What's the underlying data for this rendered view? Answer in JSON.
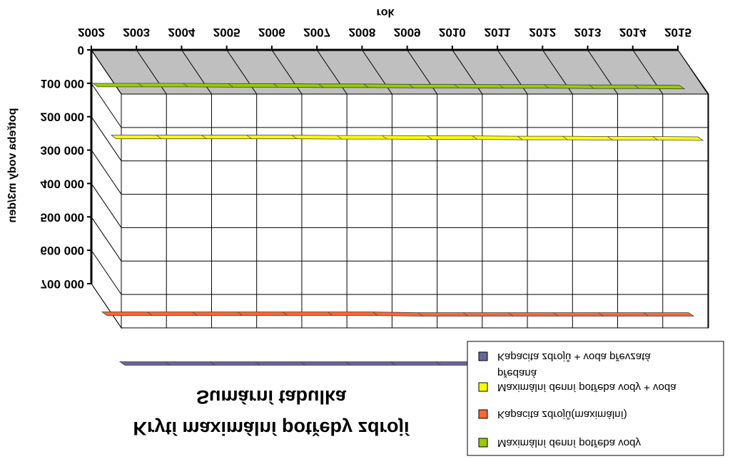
{
  "chart_data": {
    "type": "area",
    "orientation": "upside-down (mirrored vertically)",
    "title": "Krytí maximální potřeby zdrojí",
    "subtitle": "Sumární tabulka",
    "xlabel": "rok",
    "ylabel": "potřeba vody m3/den",
    "categories": [
      "2002",
      "2003",
      "2004",
      "2005",
      "2006",
      "2007",
      "2008",
      "2009",
      "2010",
      "2011",
      "2012",
      "2013",
      "2014",
      "2015"
    ],
    "y_ticks": [
      0,
      100000,
      200000,
      300000,
      400000,
      500000,
      600000,
      700000
    ],
    "y_tick_labels": [
      "0",
      "100 000",
      "200 000",
      "300 000",
      "400 000",
      "500 000",
      "600 000",
      "700 000"
    ],
    "ylim": [
      0,
      800000
    ],
    "grid": true,
    "legend_position": "bottom-right",
    "series": [
      {
        "name": "Maximální denní potřeba vody",
        "color": "#99cc00",
        "values": [
          100000,
          100000,
          100000,
          101000,
          101000,
          102000,
          102000,
          103000,
          103000,
          104000,
          104000,
          105000,
          105000,
          106000
        ]
      },
      {
        "name": "Kapacita zdrojů(maximální)",
        "color": "#ff6633",
        "values": [
          742000,
          742000,
          742000,
          742000,
          742000,
          742000,
          742000,
          744000,
          744000,
          744000,
          744000,
          744000,
          744000,
          744000
        ]
      },
      {
        "name": "Maximální denní potřeba vody + voda předaná",
        "color": "#ffff00",
        "values": [
          170000,
          170000,
          170000,
          170000,
          170000,
          171000,
          171000,
          172000,
          172000,
          173000,
          173000,
          174000,
          174000,
          175000
        ]
      },
      {
        "name": "Kapacita zdrojů + voda převzatá",
        "color": "#666699",
        "values": [
          810000,
          810000,
          810000,
          810000,
          810000,
          810000,
          810000,
          810000,
          810000,
          810000,
          810000,
          810000,
          810000,
          810000
        ]
      }
    ]
  }
}
